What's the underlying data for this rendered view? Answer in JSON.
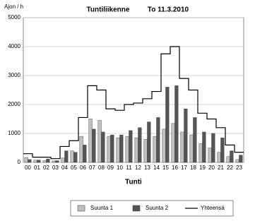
{
  "chart_data": {
    "type": "bar",
    "title": "Tuntiliikenne",
    "subtitle": "To 11.3.2010",
    "y_label": "Ajon / h",
    "x_label": "Tunti",
    "categories": [
      "00",
      "01",
      "02",
      "03",
      "04",
      "05",
      "06",
      "07",
      "08",
      "09",
      "10",
      "11",
      "12",
      "13",
      "14",
      "15",
      "16",
      "17",
      "18",
      "19",
      "20",
      "21",
      "22",
      "23"
    ],
    "series": [
      {
        "name": "Suunta 1",
        "color": "#c0c0c0",
        "type": "bar",
        "values": [
          170,
          80,
          60,
          50,
          150,
          400,
          900,
          1500,
          1450,
          900,
          850,
          900,
          850,
          800,
          900,
          1150,
          1350,
          1050,
          950,
          650,
          500,
          350,
          200,
          100
        ]
      },
      {
        "name": "Suunta 2",
        "color": "#555555",
        "type": "bar",
        "values": [
          100,
          80,
          120,
          60,
          400,
          350,
          600,
          1150,
          1050,
          950,
          950,
          1100,
          1200,
          1400,
          1550,
          2600,
          2650,
          1850,
          1550,
          1050,
          1000,
          850,
          400,
          250
        ]
      },
      {
        "name": "Yhteensä",
        "color": "#000000",
        "type": "step",
        "values": [
          300,
          180,
          180,
          130,
          550,
          750,
          1550,
          2650,
          2500,
          1850,
          1800,
          2000,
          2050,
          2200,
          2450,
          3750,
          4000,
          2900,
          2500,
          1700,
          1500,
          1200,
          600,
          350
        ]
      }
    ],
    "ylim": [
      0,
      5000
    ],
    "yticks": [
      0,
      1000,
      2000,
      3000,
      4000,
      5000
    ],
    "grid": true
  }
}
